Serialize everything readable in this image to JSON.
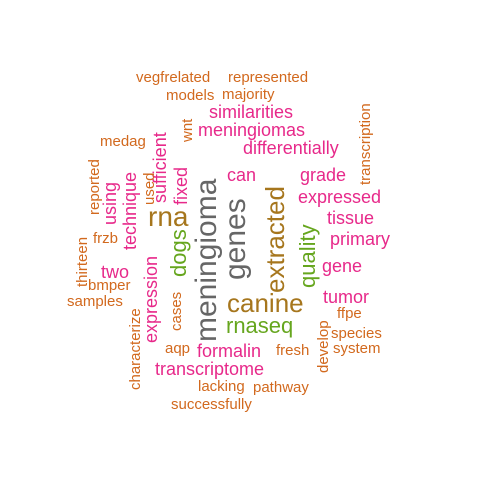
{
  "palette": {
    "orange": "#d2691e",
    "pink": "#e7298a",
    "green": "#66a61e",
    "brown": "#a6761d",
    "gray": "#666666"
  },
  "words": [
    {
      "text": "vegfrelated",
      "color": "#d2691e"
    },
    {
      "text": "represented",
      "color": "#d2691e"
    },
    {
      "text": "models",
      "color": "#d2691e"
    },
    {
      "text": "majority",
      "color": "#d2691e"
    },
    {
      "text": "similarities",
      "color": "#e7298a"
    },
    {
      "text": "meningiomas",
      "color": "#e7298a"
    },
    {
      "text": "differentially",
      "color": "#e7298a"
    },
    {
      "text": "medag",
      "color": "#d2691e"
    },
    {
      "text": "wnt",
      "color": "#d2691e"
    },
    {
      "text": "transcription",
      "color": "#d2691e"
    },
    {
      "text": "sufficient",
      "color": "#e7298a"
    },
    {
      "text": "meningioma",
      "color": "#666666"
    },
    {
      "text": "genes",
      "color": "#666666"
    },
    {
      "text": "can",
      "color": "#e7298a"
    },
    {
      "text": "grade",
      "color": "#e7298a"
    },
    {
      "text": "reported",
      "color": "#d2691e"
    },
    {
      "text": "used",
      "color": "#d2691e"
    },
    {
      "text": "fixed",
      "color": "#e7298a"
    },
    {
      "text": "using",
      "color": "#e7298a"
    },
    {
      "text": "technique",
      "color": "#e7298a"
    },
    {
      "text": "rna",
      "color": "#a6761d"
    },
    {
      "text": "extracted",
      "color": "#a6761d"
    },
    {
      "text": "quality",
      "color": "#66a61e"
    },
    {
      "text": "expressed",
      "color": "#e7298a"
    },
    {
      "text": "tissue",
      "color": "#e7298a"
    },
    {
      "text": "primary",
      "color": "#e7298a"
    },
    {
      "text": "frzb",
      "color": "#d2691e"
    },
    {
      "text": "thirteen",
      "color": "#d2691e"
    },
    {
      "text": "dogs",
      "color": "#66a61e"
    },
    {
      "text": "gene",
      "color": "#e7298a"
    },
    {
      "text": "two",
      "color": "#e7298a"
    },
    {
      "text": "expression",
      "color": "#e7298a"
    },
    {
      "text": "bmper",
      "color": "#d2691e"
    },
    {
      "text": "samples",
      "color": "#d2691e"
    },
    {
      "text": "canine",
      "color": "#a6761d"
    },
    {
      "text": "tumor",
      "color": "#e7298a"
    },
    {
      "text": "cases",
      "color": "#d2691e"
    },
    {
      "text": "ffpe",
      "color": "#d2691e"
    },
    {
      "text": "rnaseq",
      "color": "#66a61e"
    },
    {
      "text": "characterize",
      "color": "#d2691e"
    },
    {
      "text": "develop",
      "color": "#d2691e"
    },
    {
      "text": "species",
      "color": "#d2691e"
    },
    {
      "text": "aqp",
      "color": "#d2691e"
    },
    {
      "text": "formalin",
      "color": "#e7298a"
    },
    {
      "text": "fresh",
      "color": "#d2691e"
    },
    {
      "text": "system",
      "color": "#d2691e"
    },
    {
      "text": "transcriptome",
      "color": "#e7298a"
    },
    {
      "text": "lacking",
      "color": "#d2691e"
    },
    {
      "text": "pathway",
      "color": "#d2691e"
    },
    {
      "text": "successfully",
      "color": "#d2691e"
    }
  ]
}
